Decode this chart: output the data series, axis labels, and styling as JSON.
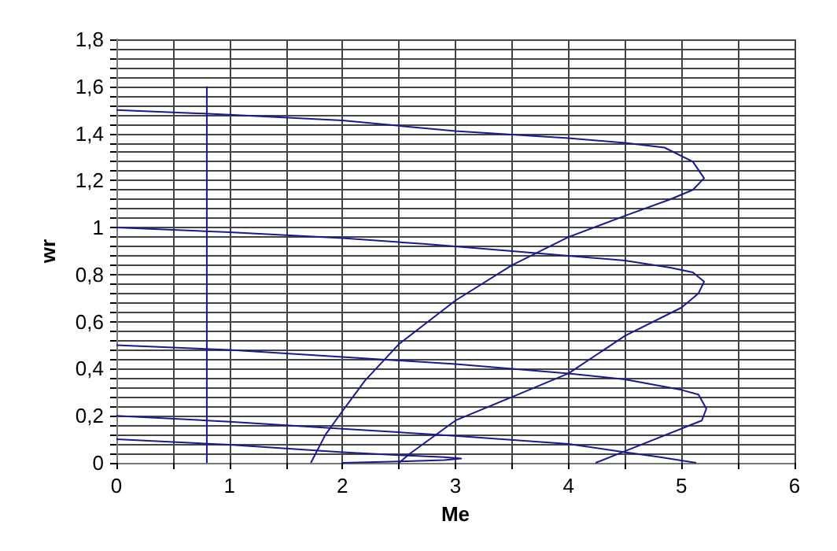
{
  "chart_data": {
    "type": "line",
    "xlabel": "Me",
    "ylabel": "wr",
    "grid": true,
    "xlim": [
      0,
      6
    ],
    "xticks": [
      0,
      {
        "value": 0.5,
        "label": null
      },
      1,
      {
        "value": 1.5,
        "label": null
      },
      2,
      {
        "value": 2.5,
        "label": null
      },
      3,
      {
        "value": 3.5,
        "label": null
      },
      4,
      {
        "value": 4.5,
        "label": null
      },
      5,
      {
        "value": 5.5,
        "label": null
      },
      6
    ],
    "ylim": [
      0,
      1.8
    ],
    "yticks": [
      0,
      {
        "value": 0.04,
        "label": null
      },
      {
        "value": 0.08,
        "label": null
      },
      {
        "value": 0.12,
        "label": null
      },
      {
        "value": 0.16,
        "label": null
      },
      {
        "value": 0.2,
        "label": "0,2"
      },
      {
        "value": 0.24,
        "label": null
      },
      {
        "value": 0.28,
        "label": null
      },
      {
        "value": 0.32,
        "label": null
      },
      {
        "value": 0.36,
        "label": null
      },
      {
        "value": 0.4,
        "label": "0,4"
      },
      {
        "value": 0.44,
        "label": null
      },
      {
        "value": 0.48,
        "label": null
      },
      {
        "value": 0.52,
        "label": null
      },
      {
        "value": 0.56,
        "label": null
      },
      {
        "value": 0.6,
        "label": "0,6"
      },
      {
        "value": 0.64,
        "label": null
      },
      {
        "value": 0.68,
        "label": null
      },
      {
        "value": 0.72,
        "label": null
      },
      {
        "value": 0.76,
        "label": null
      },
      {
        "value": 0.8,
        "label": "0,8"
      },
      {
        "value": 0.84,
        "label": null
      },
      {
        "value": 0.88,
        "label": null
      },
      {
        "value": 0.92,
        "label": null
      },
      {
        "value": 0.96,
        "label": null
      },
      1,
      {
        "value": 1.04,
        "label": null
      },
      {
        "value": 1.08,
        "label": null
      },
      {
        "value": 1.12,
        "label": null
      },
      {
        "value": 1.16,
        "label": null
      },
      {
        "value": 1.2,
        "label": "1,2"
      },
      {
        "value": 1.24,
        "label": null
      },
      {
        "value": 1.28,
        "label": null
      },
      {
        "value": 1.32,
        "label": null
      },
      {
        "value": 1.36,
        "label": null
      },
      {
        "value": 1.4,
        "label": "1,4"
      },
      {
        "value": 1.44,
        "label": null
      },
      {
        "value": 1.48,
        "label": null
      },
      {
        "value": 1.52,
        "label": null
      },
      {
        "value": 1.56,
        "label": null
      },
      {
        "value": 1.6,
        "label": "1,6"
      },
      {
        "value": 1.64,
        "label": null
      },
      {
        "value": 1.68,
        "label": null
      },
      {
        "value": 1.72,
        "label": null
      },
      {
        "value": 1.76,
        "label": null
      },
      {
        "value": 1.8,
        "label": "1,8"
      }
    ],
    "series": [
      {
        "color": "#1a1a8c",
        "x": [
          0,
          1,
          2,
          3,
          4,
          4.5,
          4.85,
          5.1,
          5.2,
          5.1,
          4.9,
          4.5,
          4,
          3.5,
          3,
          2.5,
          2.2,
          2,
          1.85,
          1.72
        ],
        "values": [
          1.5,
          1.48,
          1.455,
          1.41,
          1.38,
          1.36,
          1.34,
          1.28,
          1.21,
          1.16,
          1.12,
          1.05,
          0.96,
          0.84,
          0.69,
          0.505,
          0.35,
          0.22,
          0.12,
          0
        ]
      },
      {
        "color": "#1a1a8c",
        "x": [
          0,
          1,
          2,
          2.74,
          3.5,
          4,
          4.5,
          4.9,
          5.1,
          5.2,
          5.15,
          5,
          4.5,
          4,
          3.5,
          3,
          2.6,
          2.5
        ],
        "values": [
          1,
          0.98,
          0.955,
          0.93,
          0.9,
          0.88,
          0.86,
          0.83,
          0.81,
          0.77,
          0.72,
          0.66,
          0.54,
          0.38,
          0.28,
          0.18,
          0.04,
          0
        ]
      },
      {
        "color": "#1a1a8c",
        "x": [
          0,
          1,
          2,
          3,
          3.5,
          4,
          4.5,
          5,
          5.15,
          5.22,
          5.18,
          4.5,
          4.24
        ],
        "values": [
          0.5,
          0.48,
          0.45,
          0.42,
          0.4,
          0.38,
          0.355,
          0.31,
          0.29,
          0.23,
          0.18,
          0.05,
          0
        ]
      },
      {
        "color": "#1a1a8c",
        "x": [
          0,
          1,
          2,
          3,
          4,
          4.5,
          4.8,
          5.13
        ],
        "values": [
          0.2,
          0.175,
          0.145,
          0.115,
          0.08,
          0.045,
          0.025,
          0
        ]
      },
      {
        "color": "#1a1a8c",
        "x": [
          0,
          1,
          2,
          2.5,
          2.9,
          3.05,
          2.9,
          2.5,
          2
        ],
        "values": [
          0.1,
          0.077,
          0.045,
          0.033,
          0.024,
          0.018,
          0.012,
          0.006,
          0
        ]
      },
      {
        "color": "#1a1a8c",
        "x": [
          0.8,
          0.8
        ],
        "values": [
          0,
          1.6
        ]
      }
    ]
  }
}
